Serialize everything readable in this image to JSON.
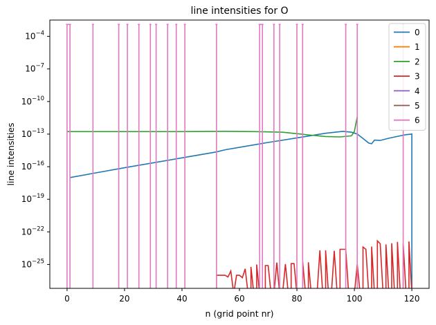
{
  "chart_data": {
    "type": "line",
    "title": "line intensities for O",
    "xlabel": "n (grid point nr)",
    "ylabel": "line intensities",
    "xlim": [
      -6,
      126
    ],
    "ylim_log10": [
      -27.2,
      -2.5
    ],
    "yscale": "log",
    "x_ticks": [
      0,
      20,
      40,
      60,
      80,
      100,
      120
    ],
    "y_ticks": [
      {
        "exp": -25,
        "label": "10−25"
      },
      {
        "exp": -22,
        "label": "10−22"
      },
      {
        "exp": -19,
        "label": "10−19"
      },
      {
        "exp": -16,
        "label": "10−16"
      },
      {
        "exp": -13,
        "label": "10−13"
      },
      {
        "exp": -10,
        "label": "10−10"
      },
      {
        "exp": -7,
        "label": "10−7"
      },
      {
        "exp": -4,
        "label": "10−4"
      }
    ],
    "grid": false,
    "legend_position": "top-right",
    "series": [
      {
        "name": "0",
        "color": "#1f77b4",
        "points": [
          [
            1,
            1e-17
          ],
          [
            10,
            2.7e-17
          ],
          [
            20,
            8e-17
          ],
          [
            30,
            2.3e-16
          ],
          [
            40,
            6.5e-16
          ],
          [
            52,
            2.3e-15
          ],
          [
            55,
            3.6e-15
          ],
          [
            60,
            6e-15
          ],
          [
            70,
            1.7e-14
          ],
          [
            80,
            4.5e-14
          ],
          [
            90,
            1.2e-13
          ],
          [
            96,
            1.8e-13
          ],
          [
            99,
            1.5e-13
          ],
          [
            101,
            1e-13
          ],
          [
            103,
            4e-14
          ],
          [
            105,
            1.5e-14
          ],
          [
            106,
            1.3e-14
          ],
          [
            107,
            2.8e-14
          ],
          [
            109,
            2.6e-14
          ],
          [
            112,
            4.2e-14
          ],
          [
            116,
            7e-14
          ],
          [
            118,
            9e-14
          ],
          [
            120,
            1e-13
          ],
          [
            120,
            1e-30
          ]
        ]
      },
      {
        "name": "1",
        "color": "#ff7f0e",
        "points": []
      },
      {
        "name": "2",
        "color": "#2ca02c",
        "points": [
          [
            0,
            1.7e-13
          ],
          [
            20,
            1.7e-13
          ],
          [
            40,
            1.7e-13
          ],
          [
            55,
            1.8e-13
          ],
          [
            65,
            1.7e-13
          ],
          [
            75,
            1.5e-13
          ],
          [
            80,
            1.1e-13
          ],
          [
            85,
            8e-14
          ],
          [
            90,
            6e-14
          ],
          [
            95,
            5.5e-14
          ],
          [
            99,
            7e-14
          ],
          [
            100,
            1.8e-13
          ],
          [
            101,
            4e-12
          ]
        ]
      },
      {
        "name": "3",
        "color": "#d62728",
        "points": [
          [
            52,
            1e-30
          ],
          [
            52,
            1e-26
          ],
          [
            55,
            1e-26
          ],
          [
            56,
            7e-27
          ],
          [
            57,
            2.5e-26
          ],
          [
            58,
            1e-30
          ],
          [
            59,
            1e-26
          ],
          [
            60,
            1e-26
          ],
          [
            61,
            6e-27
          ],
          [
            62,
            4e-26
          ],
          [
            63,
            1e-30
          ],
          [
            64,
            1e-30
          ],
          [
            64,
            6e-26
          ],
          [
            65,
            1e-30
          ],
          [
            66,
            1e-30
          ],
          [
            66,
            1e-25
          ],
          [
            67,
            1e-30
          ],
          [
            69,
            1e-30
          ],
          [
            69,
            8e-26
          ],
          [
            70,
            8e-26
          ],
          [
            71,
            1e-30
          ],
          [
            72,
            1e-30
          ],
          [
            73,
            1.5e-25
          ],
          [
            74,
            1e-30
          ],
          [
            75,
            1e-30
          ],
          [
            76,
            1.1e-25
          ],
          [
            77,
            1e-30
          ],
          [
            78,
            1e-30
          ],
          [
            78,
            1.2e-25
          ],
          [
            79,
            1.2e-25
          ],
          [
            80,
            1e-30
          ],
          [
            82,
            1e-30
          ],
          [
            82,
            2e-25
          ],
          [
            83,
            1e-30
          ],
          [
            84,
            1e-30
          ],
          [
            84,
            1.6e-25
          ],
          [
            85,
            1e-30
          ],
          [
            87,
            1e-30
          ],
          [
            88,
            2e-24
          ],
          [
            89,
            1e-30
          ],
          [
            90,
            1e-30
          ],
          [
            90,
            2e-24
          ],
          [
            91,
            1e-30
          ],
          [
            92,
            1e-30
          ],
          [
            93,
            1.8e-24
          ],
          [
            94,
            1e-30
          ],
          [
            95,
            1e-30
          ],
          [
            95,
            2.5e-24
          ],
          [
            97,
            2.5e-24
          ],
          [
            98,
            1e-30
          ],
          [
            100,
            1e-30
          ],
          [
            101,
            1.1e-25
          ],
          [
            102,
            1e-30
          ],
          [
            103,
            1e-30
          ],
          [
            103,
            4e-24
          ],
          [
            104,
            2.5e-24
          ],
          [
            105,
            1e-30
          ],
          [
            106,
            1e-30
          ],
          [
            106,
            4.5e-24
          ],
          [
            107,
            1e-30
          ],
          [
            108,
            1e-30
          ],
          [
            108,
            1.5e-23
          ],
          [
            109,
            8e-24
          ],
          [
            110,
            1e-30
          ],
          [
            111,
            1e-30
          ],
          [
            111,
            7e-24
          ],
          [
            112,
            1e-30
          ],
          [
            113,
            1e-30
          ],
          [
            113,
            9e-24
          ],
          [
            114,
            1e-30
          ],
          [
            115,
            1e-30
          ],
          [
            115,
            1.2e-23
          ],
          [
            116,
            1e-30
          ],
          [
            117,
            1e-30
          ],
          [
            117,
            8e-24
          ],
          [
            118,
            1e-30
          ],
          [
            119,
            1e-30
          ],
          [
            119,
            1.3e-23
          ],
          [
            120,
            1e-30
          ]
        ]
      },
      {
        "name": "4",
        "color": "#9467bd",
        "points": []
      },
      {
        "name": "5",
        "color": "#8c564b",
        "points": []
      },
      {
        "name": "6",
        "color": "#e377c2",
        "spikes": [
          0,
          1,
          9,
          18,
          21,
          25,
          29,
          31,
          35,
          38,
          41,
          52,
          67,
          68,
          72,
          74,
          80,
          82,
          97,
          101,
          117
        ],
        "spike_high_log10": -2.9,
        "intervals": [
          [
            0,
            1
          ],
          [
            67,
            68
          ],
          [
            80,
            80
          ],
          [
            101,
            101
          ]
        ]
      }
    ]
  }
}
